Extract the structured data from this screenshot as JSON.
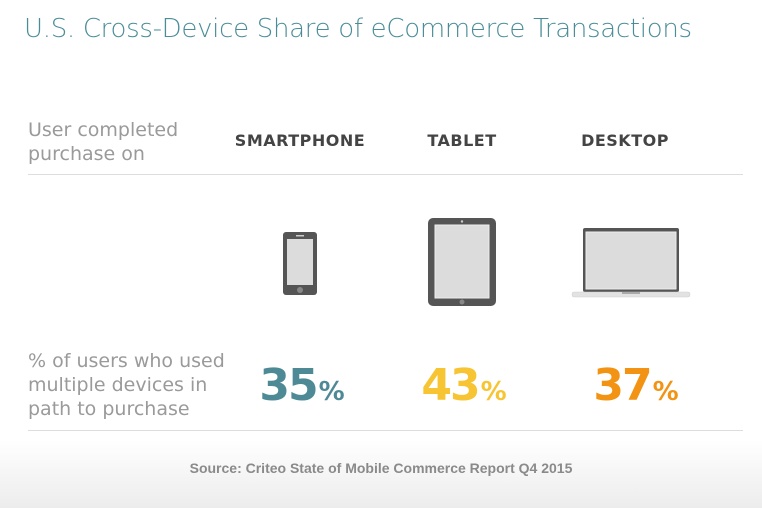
{
  "title": "U.S. Cross-Device Share of eCommerce Transactions",
  "row_label_top": "User completed purchase on",
  "row_label_bottom": "% of users who used multiple devices in path to purchase",
  "source": "Source: Criteo State of Mobile Commerce Report Q4 2015",
  "chart_data": {
    "type": "table",
    "title": "U.S. Cross-Device Share of eCommerce Transactions",
    "categories": [
      "SMARTPHONE",
      "TABLET",
      "DESKTOP"
    ],
    "icons": [
      "smartphone-icon",
      "tablet-icon",
      "laptop-icon"
    ],
    "values": [
      35,
      43,
      37
    ],
    "value_labels": [
      "35",
      "43",
      "37"
    ],
    "unit": "%",
    "colors": [
      "#4e8a96",
      "#f7c433",
      "#f39314"
    ]
  }
}
